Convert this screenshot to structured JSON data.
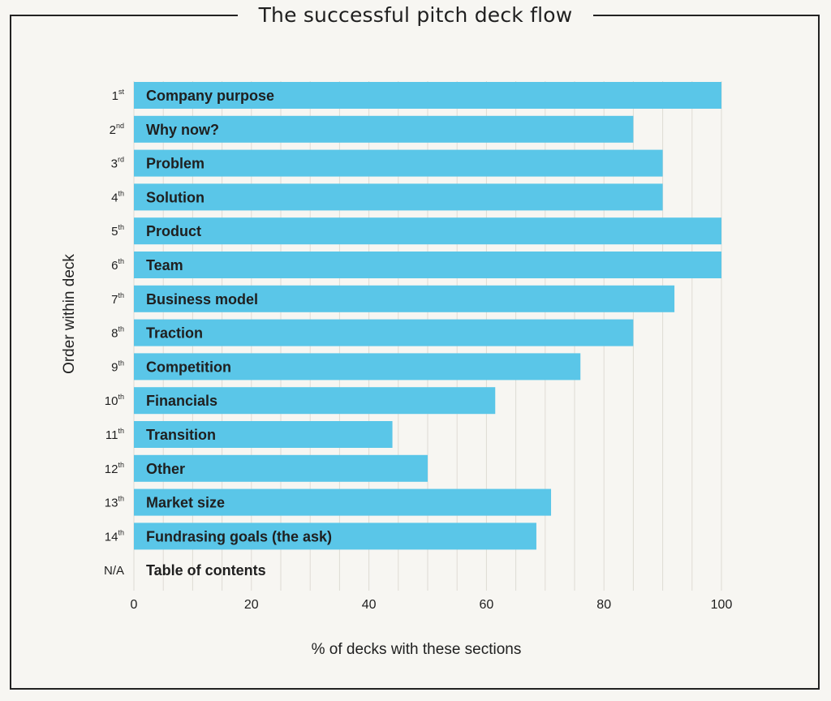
{
  "title": "The successful pitch deck flow",
  "chart_data": {
    "type": "bar",
    "orientation": "horizontal",
    "title": "The successful pitch deck flow",
    "xlabel": "% of decks with these sections",
    "ylabel": "Order within deck",
    "xlim": [
      0,
      100
    ],
    "xticks": [
      0,
      20,
      40,
      60,
      80,
      100
    ],
    "grid": "vertical",
    "bar_color": "#5ac6e8",
    "categories": [
      {
        "order_num": "1",
        "order_sup": "st",
        "label": "Company purpose",
        "value": 100
      },
      {
        "order_num": "2",
        "order_sup": "nd",
        "label": "Why now?",
        "value": 85
      },
      {
        "order_num": "3",
        "order_sup": "rd",
        "label": "Problem",
        "value": 90
      },
      {
        "order_num": "4",
        "order_sup": "th",
        "label": "Solution",
        "value": 90
      },
      {
        "order_num": "5",
        "order_sup": "th",
        "label": "Product",
        "value": 100
      },
      {
        "order_num": "6",
        "order_sup": "th",
        "label": "Team",
        "value": 100
      },
      {
        "order_num": "7",
        "order_sup": "th",
        "label": "Business model",
        "value": 92
      },
      {
        "order_num": "8",
        "order_sup": "th",
        "label": "Traction",
        "value": 85
      },
      {
        "order_num": "9",
        "order_sup": "th",
        "label": "Competition",
        "value": 76
      },
      {
        "order_num": "10",
        "order_sup": "th",
        "label": "Financials",
        "value": 61.5
      },
      {
        "order_num": "11",
        "order_sup": "th",
        "label": "Transition",
        "value": 44
      },
      {
        "order_num": "12",
        "order_sup": "th",
        "label": "Other",
        "value": 50
      },
      {
        "order_num": "13",
        "order_sup": "th",
        "label": "Market size",
        "value": 71
      },
      {
        "order_num": "14",
        "order_sup": "th",
        "label": "Fundrasing goals (the ask)",
        "value": 68.5
      },
      {
        "order_num": "N/A",
        "order_sup": "",
        "label": "Table of contents",
        "value": 0
      }
    ]
  }
}
